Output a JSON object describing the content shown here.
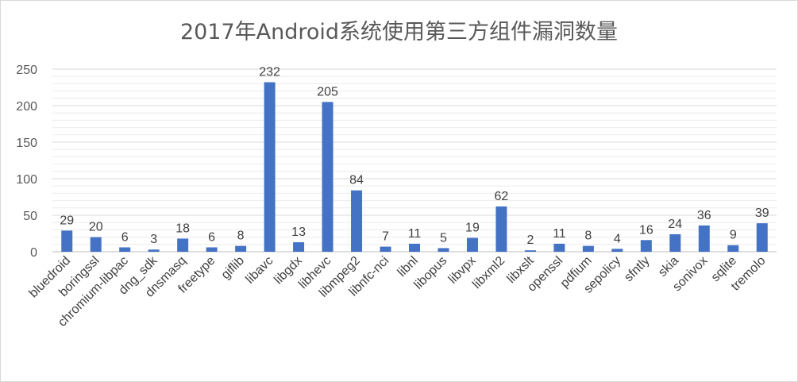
{
  "chart_data": {
    "type": "bar",
    "title": "2017年Android系统使用第三方组件漏洞数量",
    "xlabel": "",
    "ylabel": "",
    "ylim": [
      0,
      250
    ],
    "yticks": [
      0,
      50,
      100,
      150,
      200,
      250
    ],
    "grid": true,
    "legend": "none",
    "bar_color": "#4472c4",
    "categories": [
      "bluedroid",
      "boringssl",
      "chromium-libpac",
      "dng_sdk",
      "dnsmasq",
      "freetype",
      "giflib",
      "libavc",
      "libgdx",
      "libhevc",
      "libmpeg2",
      "libnfc-nci",
      "libnl",
      "libopus",
      "libvpx",
      "libxml2",
      "libxslt",
      "openssl",
      "pdfium",
      "sepolicy",
      "sfntly",
      "skia",
      "sonivox",
      "sqlite",
      "tremolo"
    ],
    "values": [
      29,
      20,
      6,
      3,
      18,
      6,
      8,
      232,
      13,
      205,
      84,
      7,
      11,
      5,
      19,
      62,
      2,
      11,
      8,
      4,
      16,
      24,
      36,
      9,
      39
    ]
  }
}
